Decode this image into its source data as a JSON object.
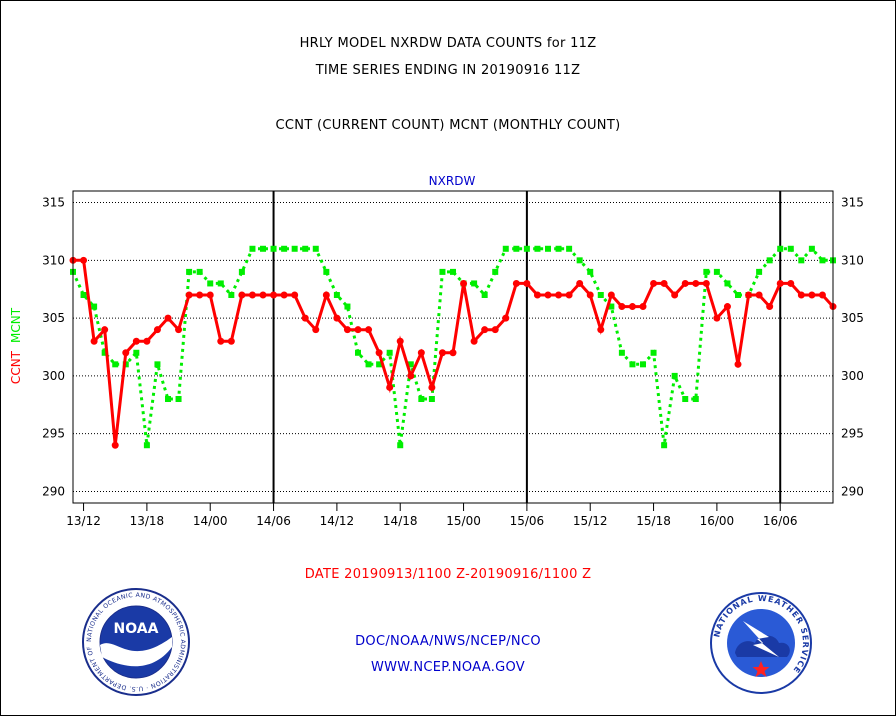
{
  "header": {
    "title_line1": "HRLY MODEL NXRDW DATA COUNTS for 11Z",
    "title_line2": "TIME SERIES ENDING IN 20190916 11Z",
    "subtitle": "CCNT (CURRENT COUNT) MCNT (MONTHLY COUNT)"
  },
  "footer": {
    "date_range": "DATE 20190913/1100 Z-20190916/1100 Z",
    "org": "DOC/NOAA/NWS/NCEP/NCO",
    "url": "WWW.NCEP.NOAA.GOV"
  },
  "logos": {
    "noaa_ring_text": "NATIONAL OCEANIC AND ATMOSPHERIC ADMINISTRATION · U.S. DEPARTMENT OF COMMERCE ·",
    "noaa_center_text": "NOAA",
    "nws_ring_text": "NATIONAL WEATHER SERVICE"
  },
  "colors": {
    "ccnt": "#ff0000",
    "mcnt": "#00ee00",
    "panel_title": "#0000cc",
    "footer_text": "#0000cc",
    "date_text": "#ff0000"
  },
  "chart_data": {
    "type": "line",
    "title": "NXRDW",
    "ylabel_parts": [
      {
        "text": "CCNT",
        "color": "#ff0000"
      },
      {
        "text": "MCNT",
        "color": "#00ee00"
      }
    ],
    "ylim": [
      289,
      316
    ],
    "yticks": [
      290,
      295,
      300,
      305,
      310,
      315
    ],
    "x_hours_from_start": [
      0,
      72
    ],
    "xtick_hours": [
      1,
      7,
      13,
      19,
      25,
      31,
      37,
      43,
      49,
      55,
      61,
      67
    ],
    "xtick_labels": [
      "13/12",
      "13/18",
      "14/00",
      "14/06",
      "14/12",
      "14/18",
      "15/00",
      "15/06",
      "15/12",
      "15/18",
      "16/00",
      "16/06"
    ],
    "day_boundary_hours": [
      19,
      43,
      67
    ],
    "grid": true,
    "series": [
      {
        "name": "CCNT",
        "color": "#ff0000",
        "style": "solid",
        "values": [
          310,
          310,
          303,
          304,
          294,
          302,
          303,
          303,
          304,
          305,
          304,
          307,
          307,
          307,
          303,
          303,
          307,
          307,
          307,
          307,
          307,
          307,
          305,
          304,
          307,
          305,
          304,
          304,
          304,
          302,
          299,
          303,
          300,
          302,
          299,
          302,
          302,
          308,
          303,
          304,
          304,
          305,
          308,
          308,
          307,
          307,
          307,
          307,
          308,
          307,
          304,
          307,
          306,
          306,
          306,
          308,
          308,
          307,
          308,
          308,
          308,
          305,
          306,
          301,
          307,
          307,
          306,
          308,
          308,
          307,
          307,
          307,
          306
        ]
      },
      {
        "name": "MCNT",
        "color": "#00ee00",
        "style": "dotted",
        "values": [
          309,
          307,
          306,
          302,
          301,
          301,
          302,
          294,
          301,
          298,
          298,
          309,
          309,
          308,
          308,
          307,
          309,
          311,
          311,
          311,
          311,
          311,
          311,
          311,
          309,
          307,
          306,
          302,
          301,
          301,
          302,
          294,
          301,
          298,
          298,
          309,
          309,
          308,
          308,
          307,
          309,
          311,
          311,
          311,
          311,
          311,
          311,
          311,
          310,
          309,
          307,
          306,
          302,
          301,
          301,
          302,
          294,
          300,
          298,
          298,
          309,
          309,
          308,
          307,
          307,
          309,
          310,
          311,
          311,
          310,
          311,
          310,
          310
        ]
      }
    ]
  }
}
